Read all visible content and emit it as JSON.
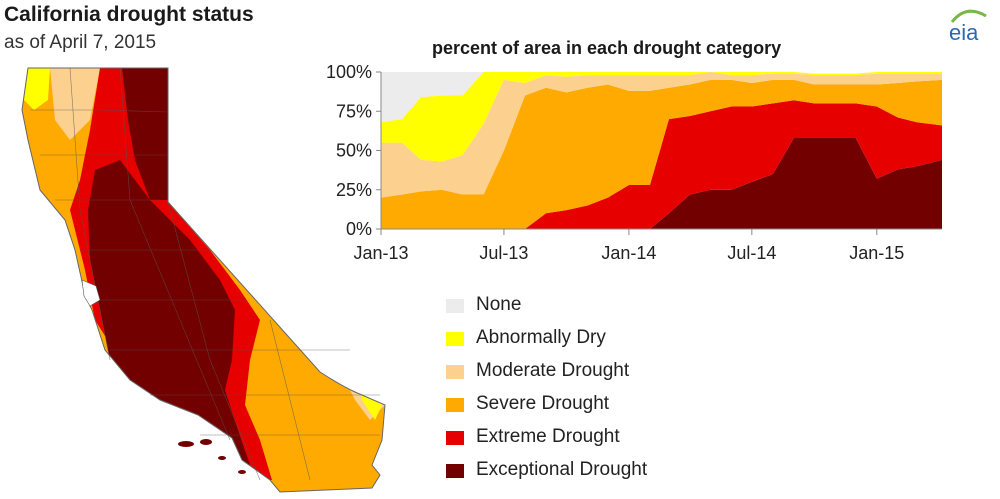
{
  "title": "California drought status",
  "subtitle": "as of April 7, 2015",
  "logo_text": "eia",
  "chart_title": "percent of area in each drought category",
  "colors": {
    "none": "#ececec",
    "abnormally_dry": "#ffff00",
    "moderate": "#fcd08f",
    "severe": "#ffaa00",
    "extreme": "#e60000",
    "exceptional": "#730000",
    "logo_green": "#7ab648",
    "logo_blue": "#2a6ab0"
  },
  "legend": [
    {
      "label": "None",
      "color": "#ececec"
    },
    {
      "label": "Abnormally Dry",
      "color": "#ffff00"
    },
    {
      "label": "Moderate Drought",
      "color": "#fcd08f"
    },
    {
      "label": "Severe Drought",
      "color": "#ffaa00"
    },
    {
      "label": "Extreme Drought",
      "color": "#e60000"
    },
    {
      "label": "Exceptional Drought",
      "color": "#730000"
    }
  ],
  "chart_data": {
    "type": "area",
    "stacked": true,
    "title": "percent of area in each drought category",
    "x_ticks": [
      "Jan-13",
      "Jul-13",
      "Jan-14",
      "Jul-14",
      "Jan-15"
    ],
    "y_ticks": [
      "0%",
      "25%",
      "50%",
      "75%",
      "100%"
    ],
    "ylim": [
      0,
      100
    ],
    "x": [
      "2013-01-01",
      "2013-02-01",
      "2013-03-01",
      "2013-04-01",
      "2013-05-01",
      "2013-06-01",
      "2013-07-01",
      "2013-08-01",
      "2013-09-01",
      "2013-10-01",
      "2013-11-01",
      "2013-12-01",
      "2014-01-01",
      "2014-02-01",
      "2014-03-01",
      "2014-04-01",
      "2014-05-01",
      "2014-06-01",
      "2014-07-01",
      "2014-08-01",
      "2014-09-01",
      "2014-10-01",
      "2014-11-01",
      "2014-12-01",
      "2015-01-01",
      "2015-02-01",
      "2015-03-01",
      "2015-04-07"
    ],
    "series": [
      {
        "name": "Exceptional Drought",
        "color": "#730000",
        "values": [
          0,
          0,
          0,
          0,
          0,
          0,
          0,
          0,
          0,
          0,
          0,
          0,
          0,
          0,
          10,
          22,
          25,
          25,
          30,
          35,
          58,
          58,
          58,
          58,
          32,
          38,
          40,
          44
        ]
      },
      {
        "name": "Extreme Drought",
        "color": "#e60000",
        "values": [
          0,
          0,
          0,
          0,
          0,
          0,
          0,
          0,
          10,
          12,
          15,
          20,
          28,
          28,
          60,
          50,
          50,
          53,
          48,
          45,
          24,
          22,
          22,
          22,
          46,
          33,
          28,
          22
        ]
      },
      {
        "name": "Severe Drought",
        "color": "#ffaa00",
        "values": [
          20,
          22,
          24,
          25,
          22,
          22,
          50,
          85,
          80,
          75,
          75,
          72,
          60,
          60,
          20,
          20,
          20,
          17,
          15,
          15,
          13,
          12,
          12,
          12,
          14,
          22,
          26,
          29
        ]
      },
      {
        "name": "Moderate Drought",
        "color": "#fcd08f",
        "values": [
          35,
          33,
          20,
          18,
          25,
          45,
          45,
          8,
          8,
          10,
          8,
          6,
          10,
          10,
          8,
          6,
          5,
          3,
          5,
          4,
          4,
          6,
          6,
          6,
          7,
          6,
          5,
          4
        ]
      },
      {
        "name": "Abnormally Dry",
        "color": "#ffff00",
        "values": [
          13,
          15,
          40,
          42,
          38,
          33,
          5,
          7,
          2,
          3,
          2,
          2,
          2,
          2,
          2,
          2,
          0,
          2,
          2,
          1,
          1,
          1,
          1,
          1,
          1,
          1,
          1,
          1
        ]
      },
      {
        "name": "None",
        "color": "#ececec",
        "values": [
          32,
          30,
          16,
          15,
          15,
          0,
          0,
          0,
          0,
          0,
          0,
          0,
          0,
          0,
          0,
          0,
          0,
          0,
          0,
          0,
          0,
          0,
          0,
          0,
          0,
          0,
          0,
          0
        ]
      }
    ]
  }
}
